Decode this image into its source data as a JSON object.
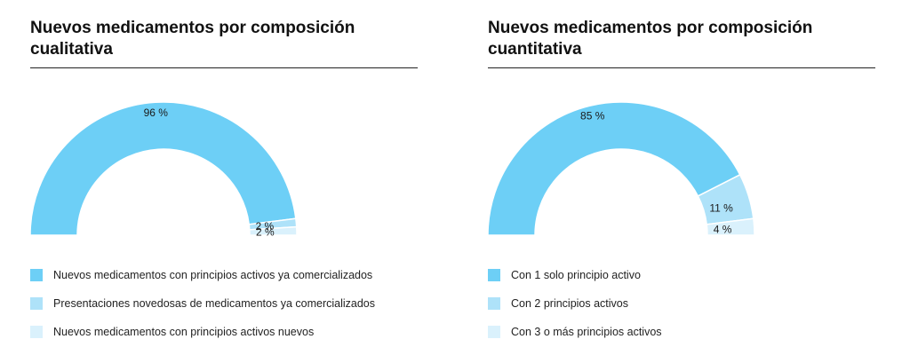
{
  "chart_data": [
    {
      "type": "pie",
      "style": "semi-donut",
      "title": "Nuevos medicamentos por composición cualitativa",
      "categories": [
        "Nuevos medicamentos con principios activos ya comercializados",
        "Presentaciones novedosas de medicamentos ya comercializados",
        "Nuevos medicamentos con principios activos nuevos"
      ],
      "values": [
        96,
        2,
        2
      ],
      "value_labels": [
        "96 %",
        "2 %",
        "2 %"
      ],
      "colors": [
        "#6dcff6",
        "#aee2f9",
        "#daf1fc"
      ],
      "legend_position": "bottom"
    },
    {
      "type": "pie",
      "style": "semi-donut",
      "title": "Nuevos medicamentos por composición cuantitativa",
      "categories": [
        "Con 1 solo principio activo",
        "Con 2 principios activos",
        "Con 3 o más principios activos"
      ],
      "values": [
        85,
        11,
        4
      ],
      "value_labels": [
        "85 %",
        "11 %",
        "4 %"
      ],
      "colors": [
        "#6dcff6",
        "#aee2f9",
        "#daf1fc"
      ],
      "legend_position": "bottom"
    }
  ]
}
